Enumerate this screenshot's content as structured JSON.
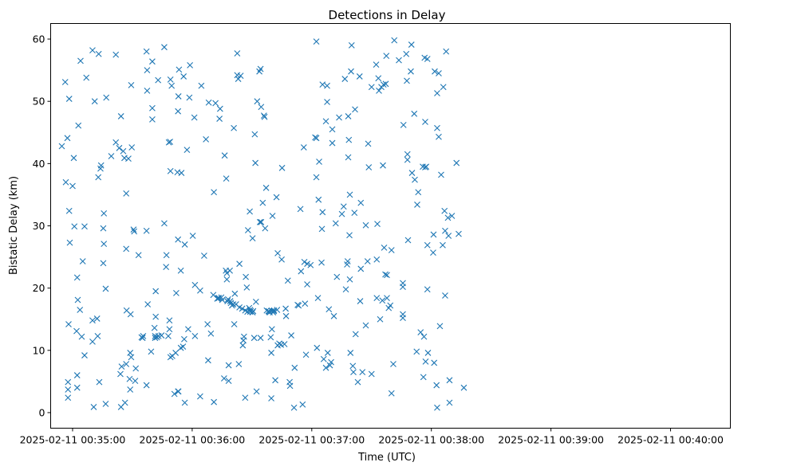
{
  "chart_data": {
    "type": "scatter",
    "title": "Detections in Delay",
    "xlabel": "Time (UTC)",
    "ylabel": "Bistatic Delay (km)",
    "x_unit": "seconds after 2025-02-11 00:35:00",
    "xlim": [
      -11,
      330
    ],
    "ylim": [
      -2.5,
      62.5
    ],
    "x_ticks": [
      0,
      60,
      120,
      180,
      240,
      300
    ],
    "x_tick_labels": [
      "2025-02-11 00:35:00",
      "2025-02-11 00:36:00",
      "2025-02-11 00:37:00",
      "2025-02-11 00:38:00",
      "2025-02-11 00:39:00",
      "2025-02-11 00:40:00"
    ],
    "y_ticks": [
      0,
      10,
      20,
      30,
      40,
      50,
      60
    ],
    "y_tick_labels": [
      "0",
      "10",
      "20",
      "30",
      "40",
      "50",
      "60"
    ],
    "grid": false,
    "marker": "x",
    "color": "#1f77b4",
    "points": [
      [
        -5.4,
        42.8
      ],
      [
        -3.7,
        53.1
      ],
      [
        -3.4,
        37.0
      ],
      [
        -2.6,
        44.1
      ],
      [
        -2.3,
        4.9
      ],
      [
        -2.3,
        3.7
      ],
      [
        -2.3,
        2.4
      ],
      [
        -2.0,
        14.2
      ],
      [
        -1.7,
        50.4
      ],
      [
        -1.7,
        32.4
      ],
      [
        -1.4,
        27.3
      ],
      [
        0.0,
        36.4
      ],
      [
        0.6,
        40.9
      ],
      [
        0.9,
        29.9
      ],
      [
        2.0,
        13.1
      ],
      [
        2.3,
        21.7
      ],
      [
        2.3,
        6.0
      ],
      [
        2.3,
        4.0
      ],
      [
        2.6,
        18.1
      ],
      [
        2.9,
        46.1
      ],
      [
        3.7,
        16.5
      ],
      [
        4.0,
        56.5
      ],
      [
        4.6,
        12.2
      ],
      [
        5.1,
        24.3
      ],
      [
        6.0,
        9.2
      ],
      [
        6.0,
        29.9
      ],
      [
        6.9,
        53.8
      ],
      [
        10.0,
        11.4
      ],
      [
        10.0,
        14.8
      ],
      [
        10.0,
        58.2
      ],
      [
        10.6,
        0.9
      ],
      [
        11.1,
        50.0
      ],
      [
        12.3,
        15.1
      ],
      [
        12.6,
        12.3
      ],
      [
        12.9,
        37.8
      ],
      [
        13.1,
        57.6
      ],
      [
        13.4,
        4.9
      ],
      [
        14.0,
        39.2
      ],
      [
        14.3,
        39.7
      ],
      [
        15.4,
        24.0
      ],
      [
        15.4,
        29.6
      ],
      [
        15.7,
        32.0
      ],
      [
        15.7,
        27.1
      ],
      [
        16.6,
        19.9
      ],
      [
        16.6,
        1.4
      ],
      [
        16.9,
        50.6
      ],
      [
        19.4,
        41.2
      ],
      [
        21.7,
        43.4
      ],
      [
        21.7,
        57.5
      ],
      [
        23.4,
        42.5
      ],
      [
        24.0,
        6.2
      ],
      [
        24.3,
        47.6
      ],
      [
        24.3,
        0.9
      ],
      [
        24.6,
        7.4
      ],
      [
        25.4,
        42.0
      ],
      [
        26.0,
        40.9
      ],
      [
        26.3,
        1.6
      ],
      [
        26.9,
        7.8
      ],
      [
        26.9,
        35.2
      ],
      [
        26.9,
        26.3
      ],
      [
        27.1,
        16.4
      ],
      [
        28.0,
        40.8
      ],
      [
        28.6,
        5.4
      ],
      [
        28.9,
        9.6
      ],
      [
        28.9,
        3.7
      ],
      [
        29.1,
        15.8
      ],
      [
        29.4,
        8.9
      ],
      [
        29.4,
        52.6
      ],
      [
        29.7,
        42.6
      ],
      [
        30.6,
        29.4
      ],
      [
        30.9,
        29.1
      ],
      [
        31.4,
        5.1
      ],
      [
        31.7,
        7.1
      ],
      [
        33.1,
        25.3
      ],
      [
        34.6,
        12.1
      ],
      [
        35.1,
        12.0
      ],
      [
        35.4,
        12.3
      ],
      [
        37.1,
        29.2
      ],
      [
        37.1,
        4.4
      ],
      [
        37.1,
        58.0
      ],
      [
        37.4,
        55.0
      ],
      [
        37.4,
        51.7
      ],
      [
        37.7,
        17.4
      ],
      [
        39.4,
        9.8
      ],
      [
        40.0,
        56.4
      ],
      [
        40.0,
        48.9
      ],
      [
        40.0,
        47.1
      ],
      [
        41.1,
        13.6
      ],
      [
        41.4,
        12.3
      ],
      [
        41.4,
        12.0
      ],
      [
        41.7,
        19.5
      ],
      [
        41.7,
        15.4
      ],
      [
        42.3,
        12.1
      ],
      [
        42.9,
        53.4
      ],
      [
        43.1,
        12.3
      ],
      [
        44.6,
        12.4
      ],
      [
        46.0,
        30.4
      ],
      [
        46.0,
        58.7
      ],
      [
        46.9,
        23.4
      ],
      [
        47.1,
        25.3
      ],
      [
        48.0,
        12.3
      ],
      [
        48.3,
        43.4
      ],
      [
        48.6,
        13.4
      ],
      [
        48.6,
        14.8
      ],
      [
        48.9,
        43.5
      ],
      [
        49.1,
        38.8
      ],
      [
        49.1,
        8.9
      ],
      [
        49.1,
        53.5
      ],
      [
        49.7,
        52.5
      ],
      [
        50.0,
        9.1
      ],
      [
        51.1,
        3.0
      ],
      [
        51.7,
        9.6
      ],
      [
        52.0,
        19.2
      ],
      [
        52.6,
        38.6
      ],
      [
        52.9,
        3.4
      ],
      [
        52.9,
        27.8
      ],
      [
        52.9,
        48.4
      ],
      [
        53.1,
        50.8
      ],
      [
        53.1,
        3.4
      ],
      [
        53.4,
        55.1
      ],
      [
        54.3,
        10.4
      ],
      [
        54.3,
        22.8
      ],
      [
        54.6,
        38.5
      ],
      [
        55.4,
        10.6
      ],
      [
        55.7,
        54.0
      ],
      [
        56.0,
        11.8
      ],
      [
        56.3,
        1.6
      ],
      [
        56.3,
        27.0
      ],
      [
        57.4,
        42.2
      ],
      [
        58.0,
        13.4
      ],
      [
        58.6,
        50.6
      ],
      [
        58.9,
        55.8
      ],
      [
        60.3,
        28.4
      ],
      [
        61.1,
        47.4
      ],
      [
        61.4,
        20.5
      ],
      [
        61.4,
        12.3
      ],
      [
        64.0,
        19.6
      ],
      [
        64.0,
        2.6
      ],
      [
        64.6,
        52.5
      ],
      [
        66.0,
        25.2
      ],
      [
        66.9,
        43.9
      ],
      [
        67.7,
        14.2
      ],
      [
        68.0,
        8.4
      ],
      [
        68.3,
        49.8
      ],
      [
        69.4,
        12.7
      ],
      [
        70.6,
        18.9
      ],
      [
        70.9,
        35.4
      ],
      [
        70.9,
        1.7
      ],
      [
        71.7,
        49.7
      ],
      [
        72.6,
        18.3
      ],
      [
        72.9,
        18.4
      ],
      [
        73.4,
        18.4
      ],
      [
        73.7,
        47.2
      ],
      [
        74.0,
        48.8
      ],
      [
        74.6,
        18.5
      ],
      [
        75.1,
        18.1
      ],
      [
        76.0,
        5.5
      ],
      [
        76.3,
        41.3
      ],
      [
        76.9,
        22.8
      ],
      [
        77.1,
        37.6
      ],
      [
        77.4,
        22.4
      ],
      [
        77.4,
        21.4
      ],
      [
        77.7,
        17.9
      ],
      [
        78.0,
        18.2
      ],
      [
        78.3,
        5.1
      ],
      [
        78.3,
        7.6
      ],
      [
        78.9,
        22.8
      ],
      [
        79.1,
        17.9
      ],
      [
        79.4,
        17.6
      ],
      [
        80.0,
        17.2
      ],
      [
        80.6,
        17.4
      ],
      [
        80.9,
        45.7
      ],
      [
        81.1,
        14.2
      ],
      [
        81.4,
        19.1
      ],
      [
        82.0,
        17.4
      ],
      [
        82.6,
        57.7
      ],
      [
        82.6,
        54.2
      ],
      [
        83.1,
        53.6
      ],
      [
        83.4,
        7.8
      ],
      [
        83.7,
        23.9
      ],
      [
        83.7,
        16.9
      ],
      [
        84.3,
        54.1
      ],
      [
        85.1,
        16.7
      ],
      [
        85.4,
        10.8
      ],
      [
        85.7,
        11.6
      ],
      [
        86.0,
        12.2
      ],
      [
        86.6,
        16.4
      ],
      [
        86.6,
        2.4
      ],
      [
        86.9,
        21.8
      ],
      [
        87.4,
        20.1
      ],
      [
        87.7,
        16.2
      ],
      [
        88.0,
        29.3
      ],
      [
        88.6,
        16.8
      ],
      [
        88.9,
        32.3
      ],
      [
        89.1,
        16.2
      ],
      [
        89.1,
        16.5
      ],
      [
        89.4,
        16.3
      ],
      [
        90.3,
        28.0
      ],
      [
        90.3,
        16.1
      ],
      [
        90.6,
        16.3
      ],
      [
        91.1,
        12.0
      ],
      [
        91.4,
        44.7
      ],
      [
        91.7,
        40.1
      ],
      [
        92.0,
        17.8
      ],
      [
        92.3,
        3.4
      ],
      [
        92.6,
        50.0
      ],
      [
        93.7,
        54.8
      ],
      [
        94.0,
        30.6
      ],
      [
        94.3,
        55.2
      ],
      [
        94.3,
        12.0
      ],
      [
        94.6,
        49.1
      ],
      [
        94.6,
        30.6
      ],
      [
        95.4,
        33.7
      ],
      [
        96.0,
        47.7
      ],
      [
        96.3,
        47.5
      ],
      [
        96.6,
        29.6
      ],
      [
        97.1,
        36.1
      ],
      [
        97.4,
        16.4
      ],
      [
        98.3,
        16.3
      ],
      [
        98.6,
        16.2
      ],
      [
        98.9,
        16.1
      ],
      [
        99.4,
        12.1
      ],
      [
        99.7,
        9.6
      ],
      [
        99.7,
        2.3
      ],
      [
        100.0,
        13.4
      ],
      [
        100.0,
        16.3
      ],
      [
        100.3,
        31.6
      ],
      [
        100.6,
        16.1
      ],
      [
        100.9,
        16.3
      ],
      [
        101.1,
        16.4
      ],
      [
        101.7,
        5.2
      ],
      [
        102.3,
        34.6
      ],
      [
        102.6,
        16.5
      ],
      [
        102.9,
        25.6
      ],
      [
        102.9,
        10.8
      ],
      [
        103.7,
        11.1
      ],
      [
        104.6,
        10.9
      ],
      [
        104.9,
        24.6
      ],
      [
        105.1,
        39.3
      ],
      [
        106.3,
        11.0
      ],
      [
        106.9,
        16.7
      ],
      [
        107.1,
        15.5
      ],
      [
        108.0,
        21.2
      ],
      [
        108.9,
        4.9
      ],
      [
        109.1,
        4.3
      ],
      [
        109.7,
        12.4
      ],
      [
        111.1,
        0.8
      ],
      [
        111.4,
        7.2
      ],
      [
        112.9,
        17.3
      ],
      [
        113.4,
        17.2
      ],
      [
        114.3,
        32.7
      ],
      [
        114.6,
        22.7
      ],
      [
        115.4,
        1.3
      ],
      [
        116.0,
        42.6
      ],
      [
        116.3,
        24.2
      ],
      [
        116.6,
        17.5
      ],
      [
        117.1,
        9.3
      ],
      [
        117.7,
        23.9
      ],
      [
        117.7,
        20.6
      ],
      [
        119.4,
        23.7
      ],
      [
        121.7,
        44.2
      ],
      [
        122.3,
        59.6
      ],
      [
        122.3,
        37.8
      ],
      [
        122.3,
        44.1
      ],
      [
        122.6,
        10.4
      ],
      [
        123.1,
        18.4
      ],
      [
        123.4,
        34.2
      ],
      [
        123.7,
        40.3
      ],
      [
        124.9,
        24.1
      ],
      [
        125.1,
        29.5
      ],
      [
        125.4,
        32.2
      ],
      [
        125.4,
        52.7
      ],
      [
        126.0,
        8.6
      ],
      [
        127.1,
        46.8
      ],
      [
        127.1,
        7.2
      ],
      [
        127.7,
        52.5
      ],
      [
        127.7,
        49.9
      ],
      [
        128.0,
        9.6
      ],
      [
        128.6,
        16.6
      ],
      [
        129.1,
        7.6
      ],
      [
        129.7,
        8.1
      ],
      [
        130.3,
        45.5
      ],
      [
        130.3,
        43.3
      ],
      [
        131.1,
        15.5
      ],
      [
        132.0,
        30.4
      ],
      [
        132.6,
        21.8
      ],
      [
        133.7,
        47.4
      ],
      [
        135.1,
        31.9
      ],
      [
        136.0,
        33.1
      ],
      [
        136.6,
        53.6
      ],
      [
        137.1,
        19.8
      ],
      [
        137.7,
        23.8
      ],
      [
        138.0,
        24.3
      ],
      [
        138.3,
        41.0
      ],
      [
        138.3,
        47.6
      ],
      [
        138.6,
        43.8
      ],
      [
        138.9,
        28.5
      ],
      [
        139.1,
        35.0
      ],
      [
        139.1,
        21.4
      ],
      [
        139.4,
        9.6
      ],
      [
        139.7,
        54.8
      ],
      [
        140.0,
        59.0
      ],
      [
        140.6,
        7.5
      ],
      [
        140.9,
        6.5
      ],
      [
        141.4,
        32.1
      ],
      [
        141.7,
        48.7
      ],
      [
        142.0,
        12.6
      ],
      [
        143.1,
        4.9
      ],
      [
        144.0,
        54.0
      ],
      [
        144.3,
        17.9
      ],
      [
        144.6,
        33.7
      ],
      [
        144.6,
        23.1
      ],
      [
        145.4,
        6.5
      ],
      [
        147.1,
        14.0
      ],
      [
        147.1,
        30.1
      ],
      [
        148.0,
        24.3
      ],
      [
        148.3,
        43.2
      ],
      [
        148.6,
        39.4
      ],
      [
        150.0,
        52.3
      ],
      [
        150.0,
        6.2
      ],
      [
        152.3,
        55.9
      ],
      [
        152.6,
        24.6
      ],
      [
        152.6,
        18.4
      ],
      [
        152.9,
        30.3
      ],
      [
        153.4,
        53.7
      ],
      [
        153.7,
        51.7
      ],
      [
        154.3,
        15.0
      ],
      [
        154.9,
        52.3
      ],
      [
        155.4,
        18.0
      ],
      [
        155.7,
        39.7
      ],
      [
        156.0,
        52.7
      ],
      [
        156.3,
        26.5
      ],
      [
        156.9,
        22.2
      ],
      [
        157.1,
        52.8
      ],
      [
        157.4,
        57.3
      ],
      [
        157.7,
        22.1
      ],
      [
        157.7,
        18.4
      ],
      [
        158.6,
        16.8
      ],
      [
        159.4,
        17.2
      ],
      [
        160.0,
        3.1
      ],
      [
        160.0,
        26.1
      ],
      [
        160.9,
        7.8
      ],
      [
        161.4,
        59.8
      ],
      [
        163.7,
        56.6
      ],
      [
        165.7,
        20.8
      ],
      [
        165.7,
        20.2
      ],
      [
        165.7,
        15.8
      ],
      [
        165.7,
        15.2
      ],
      [
        166.0,
        46.2
      ],
      [
        167.4,
        57.6
      ],
      [
        167.7,
        53.3
      ],
      [
        168.0,
        41.5
      ],
      [
        168.0,
        40.6
      ],
      [
        168.3,
        27.7
      ],
      [
        169.7,
        54.8
      ],
      [
        170.0,
        59.1
      ],
      [
        170.3,
        38.5
      ],
      [
        171.4,
        48.0
      ],
      [
        171.7,
        37.4
      ],
      [
        172.6,
        9.8
      ],
      [
        172.9,
        33.4
      ],
      [
        173.4,
        35.4
      ],
      [
        174.6,
        12.9
      ],
      [
        175.7,
        39.5
      ],
      [
        176.0,
        5.7
      ],
      [
        176.3,
        12.2
      ],
      [
        176.6,
        57.0
      ],
      [
        176.9,
        39.4
      ],
      [
        176.9,
        46.7
      ],
      [
        177.1,
        8.2
      ],
      [
        177.4,
        39.5
      ],
      [
        178.0,
        56.8
      ],
      [
        178.0,
        26.9
      ],
      [
        178.0,
        19.8
      ],
      [
        178.3,
        9.6
      ],
      [
        180.9,
        25.7
      ],
      [
        181.1,
        28.6
      ],
      [
        181.4,
        8.0
      ],
      [
        181.7,
        54.8
      ],
      [
        182.6,
        4.4
      ],
      [
        182.9,
        51.3
      ],
      [
        182.9,
        45.7
      ],
      [
        182.9,
        0.8
      ],
      [
        183.7,
        54.5
      ],
      [
        183.7,
        44.3
      ],
      [
        184.3,
        13.9
      ],
      [
        184.9,
        38.2
      ],
      [
        185.7,
        26.9
      ],
      [
        186.0,
        52.3
      ],
      [
        186.6,
        32.4
      ],
      [
        186.9,
        18.8
      ],
      [
        186.9,
        29.2
      ],
      [
        187.4,
        58.0
      ],
      [
        188.3,
        31.3
      ],
      [
        188.6,
        28.4
      ],
      [
        189.1,
        1.6
      ],
      [
        189.1,
        5.2
      ],
      [
        190.3,
        31.6
      ],
      [
        192.6,
        40.1
      ],
      [
        193.7,
        28.7
      ],
      [
        196.3,
        4.0
      ]
    ]
  }
}
